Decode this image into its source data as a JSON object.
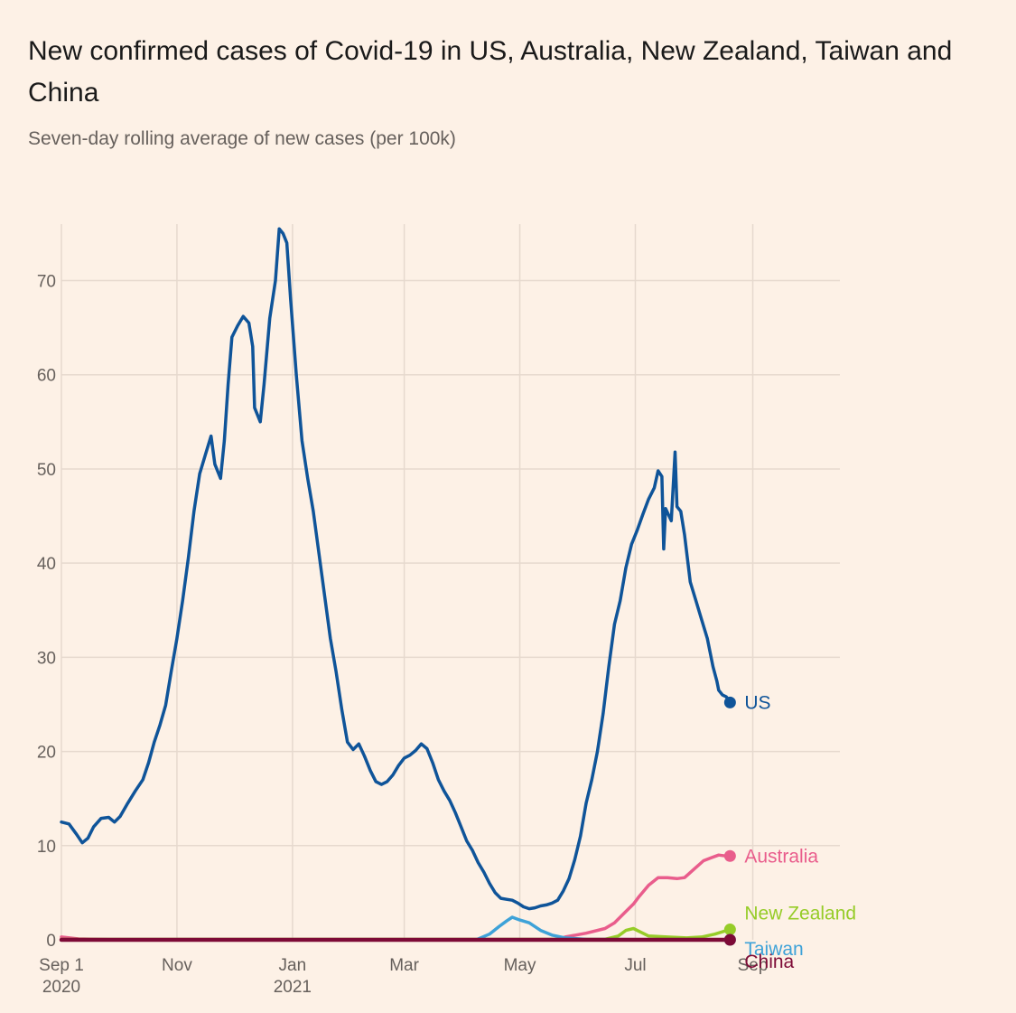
{
  "title": "New confirmed cases of Covid-19 in US, Australia, New Zealand, Taiwan and China",
  "subtitle": "Seven-day rolling average of new cases (per 100k)",
  "chart_data": {
    "type": "line",
    "title": "New confirmed cases of Covid-19 in US, Australia, New Zealand, Taiwan and China",
    "subtitle": "Seven-day rolling average of new cases (per 100k)",
    "xlabel": "",
    "ylabel": "",
    "xlim": [
      "2020-09-01",
      "2021-10-17"
    ],
    "ylim": [
      0,
      76
    ],
    "y_ticks": [
      0,
      10,
      20,
      30,
      40,
      50,
      60,
      70
    ],
    "x_ticks": [
      {
        "date": "2020-09-01",
        "label": "Sep 1",
        "sublabel": "2020"
      },
      {
        "date": "2020-11-01",
        "label": "Nov",
        "sublabel": ""
      },
      {
        "date": "2021-01-01",
        "label": "Jan",
        "sublabel": "2021"
      },
      {
        "date": "2021-03-01",
        "label": "Mar",
        "sublabel": ""
      },
      {
        "date": "2021-05-01",
        "label": "May",
        "sublabel": ""
      },
      {
        "date": "2021-07-01",
        "label": "Jul",
        "sublabel": ""
      },
      {
        "date": "2021-09-01",
        "label": "Sep",
        "sublabel": ""
      }
    ],
    "grid": true,
    "legend": "direct labels at line ends (right)",
    "series": [
      {
        "name": "US",
        "color": "#0f5499",
        "points": [
          [
            "2020-09-01",
            12.5
          ],
          [
            "2020-09-05",
            12.3
          ],
          [
            "2020-09-09",
            11.2
          ],
          [
            "2020-09-12",
            10.3
          ],
          [
            "2020-09-15",
            10.8
          ],
          [
            "2020-09-18",
            12.0
          ],
          [
            "2020-09-22",
            12.9
          ],
          [
            "2020-09-26",
            13.0
          ],
          [
            "2020-09-29",
            12.5
          ],
          [
            "2020-10-02",
            13.1
          ],
          [
            "2020-10-06",
            14.5
          ],
          [
            "2020-10-10",
            15.8
          ],
          [
            "2020-10-14",
            17.0
          ],
          [
            "2020-10-17",
            18.8
          ],
          [
            "2020-10-20",
            21.0
          ],
          [
            "2020-10-23",
            22.8
          ],
          [
            "2020-10-26",
            24.9
          ],
          [
            "2020-10-29",
            28.5
          ],
          [
            "2020-11-01",
            32.0
          ],
          [
            "2020-11-04",
            36.0
          ],
          [
            "2020-11-07",
            40.5
          ],
          [
            "2020-11-10",
            45.5
          ],
          [
            "2020-11-13",
            49.5
          ],
          [
            "2020-11-16",
            51.5
          ],
          [
            "2020-11-19",
            53.5
          ],
          [
            "2020-11-21",
            50.5
          ],
          [
            "2020-11-24",
            49.0
          ],
          [
            "2020-11-26",
            53.0
          ],
          [
            "2020-11-28",
            59.0
          ],
          [
            "2020-11-30",
            64.0
          ],
          [
            "2020-12-03",
            65.2
          ],
          [
            "2020-12-06",
            66.2
          ],
          [
            "2020-12-09",
            65.5
          ],
          [
            "2020-12-11",
            63.0
          ],
          [
            "2020-12-12",
            56.5
          ],
          [
            "2020-12-15",
            55.0
          ],
          [
            "2020-12-17",
            59.0
          ],
          [
            "2020-12-20",
            66.0
          ],
          [
            "2020-12-23",
            70.0
          ],
          [
            "2020-12-25",
            75.5
          ],
          [
            "2020-12-27",
            75.0
          ],
          [
            "2020-12-29",
            74.0
          ],
          [
            "2020-12-31",
            68.0
          ],
          [
            "2021-01-03",
            60.0
          ],
          [
            "2021-01-06",
            53.0
          ],
          [
            "2021-01-09",
            49.0
          ],
          [
            "2021-01-12",
            45.5
          ],
          [
            "2021-01-15",
            41.0
          ],
          [
            "2021-01-18",
            36.5
          ],
          [
            "2021-01-21",
            32.0
          ],
          [
            "2021-01-24",
            28.5
          ],
          [
            "2021-01-27",
            24.5
          ],
          [
            "2021-01-30",
            21.0
          ],
          [
            "2021-02-02",
            20.2
          ],
          [
            "2021-02-05",
            20.8
          ],
          [
            "2021-02-08",
            19.5
          ],
          [
            "2021-02-11",
            18.0
          ],
          [
            "2021-02-14",
            16.8
          ],
          [
            "2021-02-17",
            16.5
          ],
          [
            "2021-02-20",
            16.8
          ],
          [
            "2021-02-23",
            17.5
          ],
          [
            "2021-02-26",
            18.5
          ],
          [
            "2021-03-01",
            19.3
          ],
          [
            "2021-03-04",
            19.6
          ],
          [
            "2021-03-07",
            20.1
          ],
          [
            "2021-03-10",
            20.8
          ],
          [
            "2021-03-13",
            20.3
          ],
          [
            "2021-03-16",
            18.8
          ],
          [
            "2021-03-19",
            17.0
          ],
          [
            "2021-03-22",
            15.8
          ],
          [
            "2021-03-25",
            14.8
          ],
          [
            "2021-03-28",
            13.5
          ],
          [
            "2021-03-31",
            12.0
          ],
          [
            "2021-04-03",
            10.5
          ],
          [
            "2021-04-06",
            9.5
          ],
          [
            "2021-04-09",
            8.2
          ],
          [
            "2021-04-12",
            7.2
          ],
          [
            "2021-04-15",
            6.0
          ],
          [
            "2021-04-18",
            5.0
          ],
          [
            "2021-04-21",
            4.4
          ],
          [
            "2021-04-24",
            4.3
          ],
          [
            "2021-04-27",
            4.2
          ],
          [
            "2021-04-30",
            3.9
          ],
          [
            "2021-05-03",
            3.5
          ],
          [
            "2021-05-06",
            3.3
          ],
          [
            "2021-05-09",
            3.4
          ],
          [
            "2021-05-12",
            3.6
          ],
          [
            "2021-05-15",
            3.7
          ],
          [
            "2021-05-18",
            3.9
          ],
          [
            "2021-05-21",
            4.2
          ],
          [
            "2021-05-24",
            5.2
          ],
          [
            "2021-05-27",
            6.5
          ],
          [
            "2021-05-30",
            8.5
          ],
          [
            "2021-06-02",
            11.0
          ],
          [
            "2021-06-05",
            14.5
          ],
          [
            "2021-06-08",
            17.0
          ],
          [
            "2021-06-11",
            20.0
          ],
          [
            "2021-06-14",
            24.0
          ],
          [
            "2021-06-17",
            29.0
          ],
          [
            "2021-06-20",
            33.5
          ],
          [
            "2021-06-23",
            36.0
          ],
          [
            "2021-06-26",
            39.5
          ],
          [
            "2021-06-29",
            42.0
          ],
          [
            "2021-07-02",
            43.5
          ],
          [
            "2021-07-05",
            45.2
          ],
          [
            "2021-07-08",
            46.8
          ],
          [
            "2021-07-11",
            48.0
          ],
          [
            "2021-07-13",
            49.8
          ],
          [
            "2021-07-15",
            49.2
          ],
          [
            "2021-07-16",
            41.5
          ],
          [
            "2021-07-17",
            45.8
          ],
          [
            "2021-07-20",
            44.5
          ],
          [
            "2021-07-22",
            51.8
          ],
          [
            "2021-07-23",
            46.0
          ],
          [
            "2021-07-25",
            45.5
          ],
          [
            "2021-07-27",
            43.0
          ],
          [
            "2021-07-30",
            38.0
          ],
          [
            "2021-08-02",
            36.0
          ],
          [
            "2021-08-05",
            34.0
          ],
          [
            "2021-08-08",
            32.0
          ],
          [
            "2021-08-11",
            29.0
          ],
          [
            "2021-08-13",
            27.5
          ],
          [
            "2021-08-14",
            26.5
          ],
          [
            "2021-08-16",
            26.0
          ],
          [
            "2021-08-18",
            25.8
          ],
          [
            "2021-08-20",
            25.2
          ]
        ]
      },
      {
        "name": "Australia",
        "color": "#e95d8c",
        "points": [
          [
            "2020-09-01",
            0.3
          ],
          [
            "2020-09-10",
            0.1
          ],
          [
            "2020-10-01",
            0.0
          ],
          [
            "2021-05-20",
            0.0
          ],
          [
            "2021-05-25",
            0.3
          ],
          [
            "2021-06-05",
            0.7
          ],
          [
            "2021-06-15",
            1.2
          ],
          [
            "2021-06-20",
            1.8
          ],
          [
            "2021-06-25",
            2.8
          ],
          [
            "2021-06-30",
            3.8
          ],
          [
            "2021-07-03",
            4.6
          ],
          [
            "2021-07-08",
            5.8
          ],
          [
            "2021-07-13",
            6.6
          ],
          [
            "2021-07-18",
            6.6
          ],
          [
            "2021-07-23",
            6.5
          ],
          [
            "2021-07-27",
            6.6
          ],
          [
            "2021-08-01",
            7.5
          ],
          [
            "2021-08-06",
            8.4
          ],
          [
            "2021-08-10",
            8.7
          ],
          [
            "2021-08-14",
            9.0
          ],
          [
            "2021-08-18",
            8.9
          ],
          [
            "2021-08-20",
            8.9
          ]
        ]
      },
      {
        "name": "New Zealand",
        "color": "#96cc28",
        "points": [
          [
            "2020-09-01",
            0.05
          ],
          [
            "2021-06-15",
            0.05
          ],
          [
            "2021-06-22",
            0.4
          ],
          [
            "2021-06-26",
            1.0
          ],
          [
            "2021-06-30",
            1.2
          ],
          [
            "2021-07-04",
            0.8
          ],
          [
            "2021-07-08",
            0.4
          ],
          [
            "2021-07-18",
            0.3
          ],
          [
            "2021-07-28",
            0.2
          ],
          [
            "2021-08-05",
            0.3
          ],
          [
            "2021-08-12",
            0.6
          ],
          [
            "2021-08-20",
            1.1
          ]
        ]
      },
      {
        "name": "Taiwan",
        "color": "#3ea2d8",
        "points": [
          [
            "2020-09-01",
            0.0
          ],
          [
            "2021-04-08",
            0.0
          ],
          [
            "2021-04-15",
            0.6
          ],
          [
            "2021-04-20",
            1.4
          ],
          [
            "2021-04-24",
            2.0
          ],
          [
            "2021-04-27",
            2.4
          ],
          [
            "2021-05-01",
            2.1
          ],
          [
            "2021-05-06",
            1.8
          ],
          [
            "2021-05-12",
            1.0
          ],
          [
            "2021-05-18",
            0.5
          ],
          [
            "2021-05-25",
            0.2
          ],
          [
            "2021-06-05",
            0.05
          ],
          [
            "2021-08-20",
            0.0
          ]
        ]
      },
      {
        "name": "China",
        "color": "#7d0a36",
        "points": [
          [
            "2020-09-01",
            0.0
          ],
          [
            "2021-08-20",
            0.0
          ]
        ]
      }
    ]
  }
}
